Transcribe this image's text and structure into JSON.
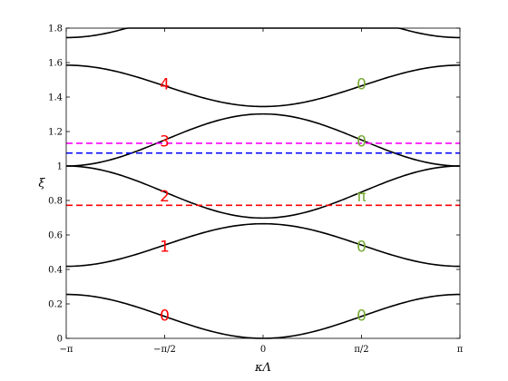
{
  "chart_data": {
    "type": "line",
    "xlabel": "κΛ",
    "ylabel": "ξ",
    "xlim": [
      -3.14159,
      3.14159
    ],
    "ylim": [
      0,
      1.8
    ],
    "grid": false,
    "x_ticks": [
      {
        "value": -3.14159,
        "label": "−π"
      },
      {
        "value": -1.5708,
        "label": "−π/2"
      },
      {
        "value": 0,
        "label": "0"
      },
      {
        "value": 1.5708,
        "label": "π/2"
      },
      {
        "value": 3.14159,
        "label": "π"
      }
    ],
    "y_ticks": [
      {
        "value": 0,
        "label": "0"
      },
      {
        "value": 0.2,
        "label": "0.2"
      },
      {
        "value": 0.4,
        "label": "0.4"
      },
      {
        "value": 0.6,
        "label": "0.6"
      },
      {
        "value": 0.8,
        "label": "0.8"
      },
      {
        "value": 1.0,
        "label": "1"
      },
      {
        "value": 1.2,
        "label": "1.2"
      },
      {
        "value": 1.4,
        "label": "1.4"
      },
      {
        "value": 1.6,
        "label": "1.6"
      },
      {
        "value": 1.8,
        "label": "1.8"
      }
    ],
    "bands": [
      {
        "edge": 0.255,
        "center": 0.0,
        "color": "#000000"
      },
      {
        "edge": 0.418,
        "center": 0.665,
        "color": "#000000"
      },
      {
        "edge": 1.0,
        "center": 0.698,
        "color": "#000000"
      },
      {
        "edge": 1.0,
        "center": 1.302,
        "color": "#000000"
      },
      {
        "edge": 1.585,
        "center": 1.345,
        "color": "#000000"
      },
      {
        "edge": 1.745,
        "center": 2.0,
        "color": "#000000"
      }
    ],
    "hlines": [
      {
        "y": 1.132,
        "color": "#ff00ff",
        "style": "dashed"
      },
      {
        "y": 1.075,
        "color": "#0000ff",
        "style": "dashed"
      },
      {
        "y": 0.772,
        "color": "#ff0000",
        "style": "dashed"
      }
    ],
    "left_labels": {
      "color": "#ff0000",
      "x": -1.5708,
      "items": [
        {
          "text": "4",
          "y": 1.47
        },
        {
          "text": "3",
          "y": 1.14
        },
        {
          "text": "2",
          "y": 0.82
        },
        {
          "text": "1",
          "y": 0.53
        },
        {
          "text": "0",
          "y": 0.13
        }
      ]
    },
    "right_labels": {
      "color": "#77aa33",
      "x": 1.5708,
      "items": [
        {
          "text": "0",
          "y": 1.47
        },
        {
          "text": "0",
          "y": 1.14
        },
        {
          "text": "π",
          "y": 0.82
        },
        {
          "text": "0",
          "y": 0.53
        },
        {
          "text": "0",
          "y": 0.13
        }
      ]
    }
  }
}
